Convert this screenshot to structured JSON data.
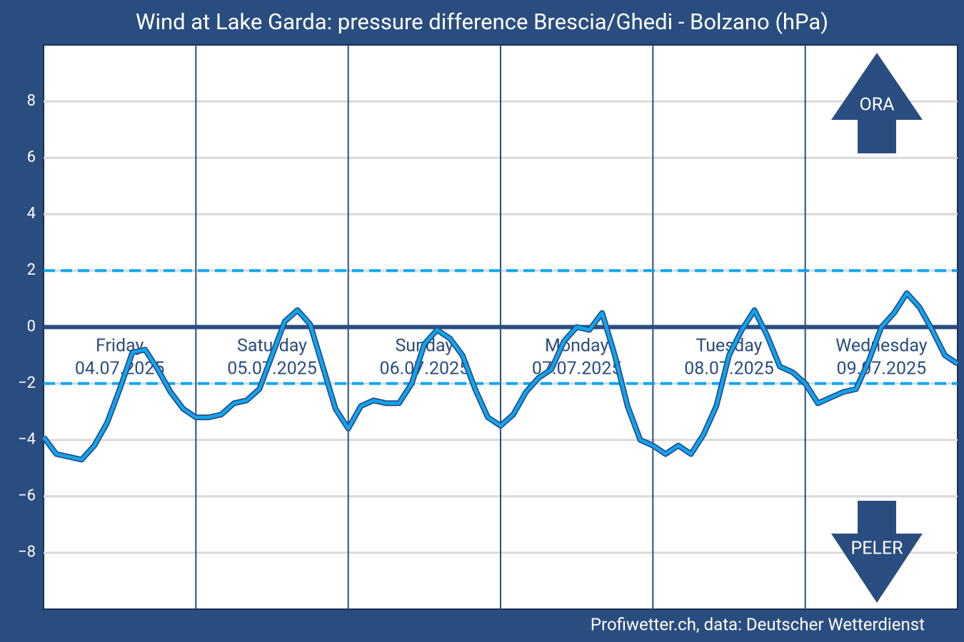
{
  "chart_data": {
    "type": "line",
    "title": "Wind at Lake Garda: pressure difference Brescia/Ghedi - Bolzano (hPa)",
    "source": "Profiwetter.ch, data: Deutscher Wetterdienst",
    "days": [
      {
        "name": "Friday",
        "date": "04.07.2025"
      },
      {
        "name": "Saturday",
        "date": "05.07.2025"
      },
      {
        "name": "Sunday",
        "date": "06.07.2025"
      },
      {
        "name": "Monday",
        "date": "07.07.2025"
      },
      {
        "name": "Tuesday",
        "date": "08.07.2025"
      },
      {
        "name": "Wednesday",
        "date": "09.07.2025"
      }
    ],
    "values": [
      -3.9,
      -4.5,
      -4.6,
      -4.7,
      -4.2,
      -3.4,
      -2.2,
      -0.9,
      -0.8,
      -1.5,
      -2.3,
      -2.9,
      -3.2,
      -3.2,
      -3.1,
      -2.7,
      -2.6,
      -2.2,
      -1.0,
      0.2,
      0.6,
      0.1,
      -1.4,
      -2.9,
      -3.6,
      -2.8,
      -2.6,
      -2.7,
      -2.7,
      -2.0,
      -0.6,
      -0.1,
      -0.4,
      -1.0,
      -2.2,
      -3.2,
      -3.5,
      -3.1,
      -2.3,
      -1.8,
      -1.5,
      -0.5,
      0.0,
      -0.1,
      0.5,
      -1.0,
      -2.8,
      -4.0,
      -4.2,
      -4.5,
      -4.2,
      -4.5,
      -3.8,
      -2.8,
      -1.0,
      -0.1,
      0.6,
      -0.3,
      -1.4,
      -1.6,
      -2.0,
      -2.7,
      -2.5,
      -2.3,
      -2.2,
      -1.2,
      0.0,
      0.5,
      1.2,
      0.7,
      -0.1,
      -1.0,
      -1.3
    ],
    "color": "#0ea5f2",
    "reference_lines": [
      2,
      -2
    ],
    "reference_color": "#0ea5f2",
    "ylim": [
      -10,
      10
    ],
    "yticks": [
      {
        "value": -8,
        "label": "−8"
      },
      {
        "value": -6,
        "label": "−6"
      },
      {
        "value": -4,
        "label": "−4"
      },
      {
        "value": -2,
        "label": "−2"
      },
      0,
      2,
      4,
      6,
      8
    ],
    "grid": true,
    "up_label": "ORA",
    "down_label": "PELER"
  }
}
